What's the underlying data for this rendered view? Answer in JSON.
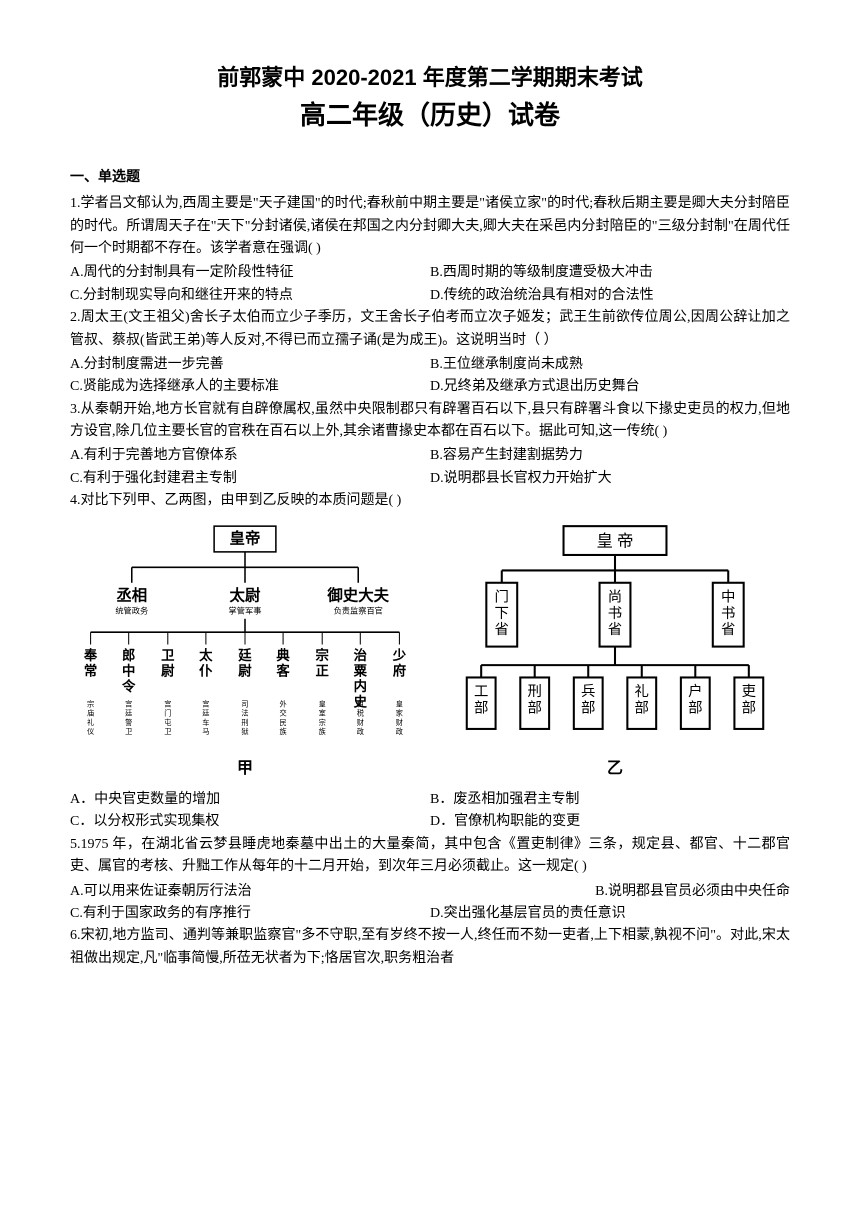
{
  "header": {
    "title_main": "前郭蒙中 2020-2021 年度第二学期期末考试",
    "title_sub": "高二年级（历史）试卷"
  },
  "section1": {
    "header": "一、单选题"
  },
  "q1": {
    "text": "1.学者吕文郁认为,西周主要是\"天子建国\"的时代;春秋前中期主要是\"诸侯立家\"的时代;春秋后期主要是卿大夫分封陪臣的时代。所谓周天子在\"天下\"分封诸侯,诸侯在邦国之内分封卿大夫,卿大夫在采邑内分封陪臣的\"三级分封制\"在周代任何一个时期都不存在。该学者意在强调(    )",
    "optA": "A.周代的分封制具有一定阶段性特征",
    "optB": "B.西周时期的等级制度遭受极大冲击",
    "optC": "C.分封制现实导向和继往开来的特点",
    "optD": "D.传统的政治统治具有相对的合法性"
  },
  "q2": {
    "text": "2.周太王(文王祖父)舍长子太伯而立少子季历，文王舍长子伯考而立次子姬发；武王生前欲传位周公,因周公辞让加之管叔、蔡叔(皆武王弟)等人反对,不得已而立孺子诵(是为成王)。这说明当时（   ）",
    "optA": "A.分封制度需进一步完善",
    "optB": "B.王位继承制度尚未成熟",
    "optC": "C.贤能成为选择继承人的主要标准",
    "optD": "D.兄终弟及继承方式退出历史舞台"
  },
  "q3": {
    "text": "3.从秦朝开始,地方长官就有自辟僚属权,虽然中央限制郡只有辟署百石以下,县只有辟署斗食以下掾史吏员的权力,但地方设官,除几位主要长官的官秩在百石以上外,其余诸曹掾史本都在百石以下。据此可知,这一传统(    )",
    "optA": "A.有利于完善地方官僚体系",
    "optB": "B.容易产生封建割据势力",
    "optC": "C.有利于强化封建君主专制",
    "optD": "D.说明郡县长官权力开始扩大"
  },
  "q4": {
    "text": "4.对比下列甲、乙两图，由甲到乙反映的本质问题是(    )",
    "optA": "A．中央官吏数量的增加",
    "optB": "B．废丞相加强君主专制",
    "optC": "C．以分权形式实现集权",
    "optD": "D．官僚机构职能的变更",
    "label_jia": "甲",
    "label_yi": "乙",
    "jia": {
      "emperor": "皇帝",
      "top": [
        "丞相",
        "太尉",
        "御史大夫"
      ],
      "top_sub": [
        "统管政务",
        "掌管军事",
        "负责监察百官"
      ],
      "bottom": [
        "奉常",
        "郎中令",
        "卫尉",
        "太仆",
        "廷尉",
        "典客",
        "宗正",
        "治粟内史",
        "少府"
      ],
      "bottom_sub": [
        "宗庙礼仪",
        "宫廷警卫",
        "宫门屯卫",
        "宫廷车马",
        "司法刑狱",
        "外交民族",
        "皇室宗族",
        "租税财政",
        "皇家财政"
      ]
    },
    "yi": {
      "emperor": "皇 帝",
      "mid": [
        "门下省",
        "尚书省",
        "中书省"
      ],
      "bottom": [
        "工部",
        "刑部",
        "兵部",
        "礼部",
        "户部",
        "吏部"
      ]
    }
  },
  "q5": {
    "text": "5.1975 年，在湖北省云梦县睡虎地秦墓中出土的大量秦简，其中包含《置吏制律》三条，规定县、都官、十二郡官吏、属官的考核、升黜工作从每年的十二月开始，到次年三月必须截止。这一规定(    )",
    "optA": "A.可以用来佐证秦朝厉行法治",
    "optB": "B.说明郡县官员必须由中央任命",
    "optC": "C.有利于国家政务的有序推行",
    "optD": "D.突出强化基层官员的责任意识"
  },
  "q6": {
    "text": "6.宋初,地方监司、通判等兼职监察官\"多不守职,至有岁终不按一人,终任而不劾一吏者,上下相蒙,孰视不问\"。对此,宋太祖做出规定,凡\"临事简慢,所莅无状者为下;恪居官次,职务粗治者"
  },
  "colors": {
    "text": "#000000",
    "bg": "#ffffff",
    "line": "#000000"
  }
}
